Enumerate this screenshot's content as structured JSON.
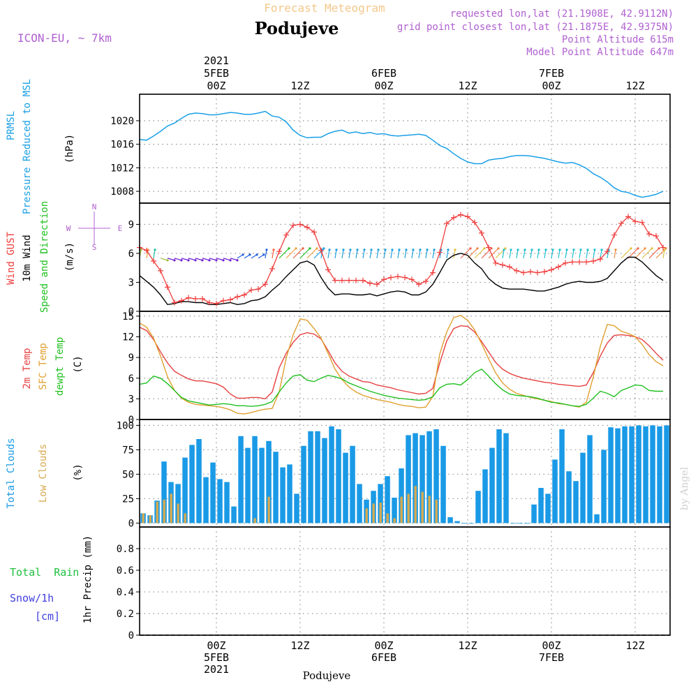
{
  "header": {
    "title": "Forecast Meteogram",
    "location": "Podujeve",
    "model": "ICON-EU, ~ 7km",
    "requested": "requested lon,lat (21.1908E, 42.9112N)",
    "gridpoint": "grid point closest lon,lat (21.1875E, 42.9375N)",
    "point_alt": "Point Altitude 615m",
    "model_alt": "Model Point Altitude 647m",
    "footer": "Podujeve",
    "watermark": "by Angel"
  },
  "colors": {
    "pressure": "#1aa0e6",
    "gust": "#f03c3c",
    "wind": "#000000",
    "temp2m": "#e64040",
    "sfc": "#e0a030",
    "dew": "#20c020",
    "cloud_total": "#1a9ae6",
    "cloud_low": "#d6aa50",
    "model_purple": "#b060d0",
    "rain_label": "#20c040",
    "snow_label": "#4040e0"
  },
  "time_axis": {
    "top_labels": [
      {
        "t": 0,
        "lines": [
          "2021",
          "5FEB",
          "00Z"
        ]
      },
      {
        "t": 12,
        "lines": [
          "12Z"
        ]
      },
      {
        "t": 24,
        "lines": [
          "6FEB",
          "00Z"
        ]
      },
      {
        "t": 36,
        "lines": [
          "12Z"
        ]
      },
      {
        "t": 48,
        "lines": [
          "7FEB",
          "00Z"
        ]
      },
      {
        "t": 60,
        "lines": [
          "12Z"
        ]
      }
    ],
    "bottom_labels": [
      {
        "t": 0,
        "lines": [
          "00Z",
          "5FEB",
          "2021"
        ]
      },
      {
        "t": 12,
        "lines": [
          "12Z"
        ]
      },
      {
        "t": 24,
        "lines": [
          "00Z",
          "6FEB"
        ]
      },
      {
        "t": 36,
        "lines": [
          "12Z"
        ]
      },
      {
        "t": 48,
        "lines": [
          "00Z",
          "7FEB"
        ]
      },
      {
        "t": 60,
        "lines": [
          "12Z"
        ]
      }
    ]
  },
  "panels": {
    "pressure": {
      "label_lines": [
        "PRMSL",
        "Pressure Reduced to MSL"
      ],
      "unit": "(hPa)"
    },
    "wind": {
      "label_lines": [
        "Wind GUST",
        "10m Wind",
        "Speed and Direction"
      ],
      "unit": "(m/s)",
      "compass": {
        "n": "N",
        "s": "S",
        "e": "E",
        "w": "W"
      }
    },
    "temp": {
      "label_lines": [
        "2m Temp",
        "SFC Temp",
        "dewpt Temp"
      ],
      "unit": "(C)"
    },
    "cloud": {
      "label_lines": [
        "Total Clouds",
        "Low Clouds"
      ],
      "unit": "(%)"
    },
    "precip": {
      "label_lines": [
        "Total  Rain",
        "Snow/1h",
        "[cm]"
      ],
      "unit": "1hr Precip (mm)"
    }
  },
  "chart_data": [
    {
      "type": "line",
      "name": "pressure",
      "xlim": [
        -11,
        65
      ],
      "ylim": [
        1006,
        1024.5
      ],
      "yticks": [
        1008,
        1012,
        1016,
        1020
      ],
      "grid": true,
      "x": [
        -11,
        -10,
        -9,
        -8,
        -7,
        -6,
        -5,
        -4,
        -3,
        -2,
        -1,
        0,
        1,
        2,
        3,
        4,
        5,
        6,
        7,
        8,
        9,
        10,
        11,
        12,
        13,
        14,
        15,
        16,
        17,
        18,
        19,
        20,
        21,
        22,
        23,
        24,
        25,
        26,
        27,
        28,
        29,
        30,
        31,
        32,
        33,
        34,
        35,
        36,
        37,
        38,
        39,
        40,
        41,
        42,
        43,
        44,
        45,
        46,
        47,
        48,
        49,
        50,
        51,
        52,
        53,
        54,
        55,
        56,
        57,
        58,
        59,
        60,
        61,
        62,
        63,
        64
      ],
      "values": [
        1016.8,
        1016.7,
        1017.4,
        1018.2,
        1019.1,
        1019.6,
        1020.4,
        1021.1,
        1021.3,
        1021.2,
        1021.0,
        1021.0,
        1021.2,
        1021.4,
        1021.3,
        1021.1,
        1021.1,
        1021.3,
        1021.6,
        1020.8,
        1020.6,
        1019.8,
        1018.4,
        1017.5,
        1017.1,
        1017.2,
        1017.2,
        1017.8,
        1018.2,
        1018.4,
        1017.9,
        1018.1,
        1017.8,
        1018.0,
        1017.7,
        1017.8,
        1017.5,
        1017.4,
        1017.5,
        1017.6,
        1017.7,
        1017.5,
        1016.7,
        1015.8,
        1015.3,
        1014.4,
        1013.6,
        1013.0,
        1012.7,
        1012.7,
        1013.3,
        1013.5,
        1013.6,
        1013.9,
        1014.1,
        1014.1,
        1014.0,
        1013.8,
        1013.6,
        1013.3,
        1013.0,
        1012.8,
        1012.9,
        1012.5,
        1011.9,
        1011.0,
        1010.4,
        1009.6,
        1008.6,
        1008.0,
        1007.8,
        1007.3,
        1007.0,
        1007.2,
        1007.5,
        1008.0
      ]
    },
    {
      "type": "line",
      "name": "wind",
      "xlim": [
        -11,
        65
      ],
      "ylim": [
        0,
        11.2
      ],
      "yticks": [
        0,
        3,
        6,
        9
      ],
      "grid": true,
      "x": [
        -11,
        -10,
        -9,
        -8,
        -7,
        -6,
        -5,
        -4,
        -3,
        -2,
        -1,
        0,
        1,
        2,
        3,
        4,
        5,
        6,
        7,
        8,
        9,
        10,
        11,
        12,
        13,
        14,
        15,
        16,
        17,
        18,
        19,
        20,
        21,
        22,
        23,
        24,
        25,
        26,
        27,
        28,
        29,
        30,
        31,
        32,
        33,
        34,
        35,
        36,
        37,
        38,
        39,
        40,
        41,
        42,
        43,
        44,
        45,
        46,
        47,
        48,
        49,
        50,
        51,
        52,
        53,
        54,
        55,
        56,
        57,
        58,
        59,
        60,
        61,
        62,
        63,
        64
      ],
      "series": [
        {
          "name": "Wind GUST",
          "marker": "+",
          "values": [
            6.6,
            6.3,
            5.2,
            4.2,
            2.5,
            0.9,
            1.1,
            1.4,
            1.3,
            1.3,
            0.9,
            0.8,
            1.1,
            1.2,
            1.5,
            1.7,
            2.2,
            2.3,
            2.8,
            4.4,
            6.2,
            7.9,
            8.9,
            9.0,
            8.7,
            8.2,
            6.3,
            4.3,
            3.2,
            3.2,
            3.2,
            3.2,
            3.2,
            2.9,
            2.8,
            3.3,
            3.5,
            3.6,
            3.5,
            3.3,
            2.8,
            3.1,
            4.0,
            6.1,
            9.1,
            9.7,
            10.0,
            9.8,
            9.2,
            8.1,
            6.6,
            5.0,
            4.8,
            4.6,
            4.2,
            4.0,
            4.1,
            4.0,
            4.1,
            4.3,
            4.6,
            5.0,
            5.1,
            5.1,
            5.1,
            5.2,
            5.4,
            6.2,
            7.9,
            9.1,
            9.8,
            9.3,
            9.2,
            8.0,
            7.8,
            6.6
          ]
        },
        {
          "name": "10m Wind",
          "values": [
            3.7,
            3.1,
            2.5,
            1.7,
            0.7,
            0.8,
            1.0,
            1.0,
            0.9,
            0.9,
            0.7,
            0.7,
            0.8,
            0.9,
            0.7,
            0.8,
            1.1,
            1.2,
            1.5,
            2.2,
            2.8,
            3.6,
            4.3,
            5.0,
            5.2,
            4.8,
            3.5,
            2.4,
            1.7,
            1.8,
            1.8,
            1.7,
            1.7,
            1.8,
            1.6,
            1.8,
            2.0,
            2.1,
            2.0,
            1.7,
            1.7,
            2.0,
            2.8,
            4.0,
            5.3,
            5.8,
            6.0,
            5.8,
            5.0,
            4.4,
            3.4,
            2.8,
            2.4,
            2.3,
            2.3,
            2.3,
            2.2,
            2.1,
            2.1,
            2.3,
            2.5,
            2.8,
            3.0,
            3.1,
            3.0,
            3.0,
            3.1,
            3.4,
            4.2,
            5.0,
            5.6,
            5.6,
            5.1,
            4.4,
            3.7,
            3.2
          ]
        }
      ]
    },
    {
      "type": "line",
      "name": "temperature",
      "xlim": [
        -11,
        65
      ],
      "ylim": [
        0,
        15.7
      ],
      "yticks": [
        0,
        3,
        6,
        9,
        12,
        15
      ],
      "grid": true,
      "x": [
        -11,
        -10,
        -9,
        -8,
        -7,
        -6,
        -5,
        -4,
        -3,
        -2,
        -1,
        0,
        1,
        2,
        3,
        4,
        5,
        6,
        7,
        8,
        9,
        10,
        11,
        12,
        13,
        14,
        15,
        16,
        17,
        18,
        19,
        20,
        21,
        22,
        23,
        24,
        25,
        26,
        27,
        28,
        29,
        30,
        31,
        32,
        33,
        34,
        35,
        36,
        37,
        38,
        39,
        40,
        41,
        42,
        43,
        44,
        45,
        46,
        47,
        48,
        49,
        50,
        51,
        52,
        53,
        54,
        55,
        56,
        57,
        58,
        59,
        60,
        61,
        62,
        63,
        64
      ],
      "series": [
        {
          "name": "2m Temp",
          "values": [
            13.4,
            12.9,
            11.6,
            9.8,
            8.2,
            7.0,
            6.4,
            5.9,
            5.6,
            5.6,
            5.4,
            5.2,
            4.7,
            3.7,
            3.1,
            3.1,
            3.2,
            3.2,
            3.0,
            4.0,
            7.5,
            9.6,
            11.2,
            12.3,
            12.6,
            12.4,
            11.7,
            10.0,
            8.2,
            7.0,
            6.3,
            5.9,
            5.5,
            5.4,
            5.0,
            4.8,
            4.6,
            4.3,
            4.1,
            3.9,
            3.7,
            3.8,
            4.5,
            8.2,
            11.4,
            13.2,
            13.6,
            13.5,
            12.7,
            11.3,
            9.8,
            8.3,
            7.3,
            6.7,
            6.3,
            6.0,
            5.8,
            5.6,
            5.4,
            5.3,
            5.1,
            5.0,
            4.9,
            4.8,
            5.0,
            6.8,
            9.2,
            11.1,
            12.2,
            12.3,
            12.2,
            12.0,
            11.6,
            10.7,
            9.6,
            8.6
          ]
        },
        {
          "name": "SFC Temp",
          "values": [
            14.0,
            13.4,
            11.8,
            9.2,
            6.2,
            4.2,
            3.1,
            2.5,
            2.2,
            2.1,
            2.0,
            1.9,
            1.7,
            1.4,
            0.9,
            0.8,
            1.0,
            1.3,
            1.5,
            1.6,
            4.0,
            8.9,
            12.3,
            14.6,
            14.4,
            13.2,
            11.8,
            9.6,
            7.3,
            5.8,
            4.7,
            4.0,
            3.5,
            3.2,
            2.9,
            2.7,
            2.5,
            2.2,
            2.0,
            1.9,
            1.7,
            1.8,
            3.3,
            9.5,
            12.7,
            14.8,
            15.1,
            14.4,
            13.0,
            11.0,
            8.8,
            6.8,
            5.3,
            4.4,
            3.8,
            3.5,
            3.2,
            3.0,
            2.8,
            2.6,
            2.3,
            2.2,
            2.0,
            1.8,
            2.5,
            6.2,
            10.6,
            13.8,
            13.6,
            12.8,
            12.5,
            12.0,
            10.9,
            9.4,
            8.4,
            7.8
          ]
        },
        {
          "name": "dewpt Temp",
          "values": [
            5.1,
            5.3,
            6.3,
            6.0,
            5.2,
            4.2,
            3.2,
            2.7,
            2.5,
            2.3,
            2.1,
            2.2,
            2.3,
            2.2,
            2.0,
            2.0,
            1.9,
            2.0,
            2.2,
            2.6,
            4.0,
            5.3,
            6.3,
            6.5,
            5.7,
            5.5,
            6.0,
            6.4,
            6.2,
            5.9,
            5.3,
            4.9,
            4.5,
            4.1,
            3.8,
            3.5,
            3.3,
            3.1,
            3.0,
            2.9,
            2.8,
            2.9,
            3.3,
            4.6,
            5.1,
            5.2,
            5.0,
            5.8,
            6.8,
            7.3,
            6.3,
            5.2,
            4.3,
            3.7,
            3.5,
            3.4,
            3.3,
            3.1,
            2.8,
            2.5,
            2.4,
            2.2,
            2.0,
            1.9,
            2.2,
            3.1,
            4.1,
            3.8,
            3.3,
            4.2,
            4.6,
            5.0,
            4.9,
            4.2,
            4.1,
            4.1
          ]
        }
      ]
    },
    {
      "type": "bar",
      "name": "clouds",
      "xlim": [
        -11,
        65
      ],
      "ylim": [
        -4,
        106
      ],
      "yticks": [
        0,
        25,
        50,
        75,
        100
      ],
      "grid": true,
      "x": [
        -11,
        -10,
        -9,
        -8,
        -7,
        -6,
        -5,
        -4,
        -3,
        -2,
        -1,
        0,
        1,
        2,
        3,
        4,
        5,
        6,
        7,
        8,
        9,
        10,
        11,
        12,
        13,
        14,
        15,
        16,
        17,
        18,
        19,
        20,
        21,
        22,
        23,
        24,
        25,
        26,
        27,
        28,
        29,
        30,
        31,
        32,
        33,
        34,
        35,
        36,
        37,
        38,
        39,
        40,
        41,
        42,
        43,
        44,
        45,
        46,
        47,
        48,
        49,
        50,
        51,
        52,
        53,
        54,
        55,
        56,
        57,
        58,
        59,
        60,
        61,
        62,
        63,
        64
      ],
      "series": [
        {
          "name": "Total Clouds",
          "values": [
            10,
            8,
            23,
            63,
            42,
            40,
            67,
            80,
            86,
            47,
            62,
            45,
            42,
            17,
            89,
            77,
            89,
            77,
            84,
            73,
            57,
            60,
            30,
            79,
            94,
            94,
            87,
            99,
            96,
            72,
            79,
            40,
            24,
            33,
            40,
            48,
            26,
            56,
            90,
            92,
            90,
            94,
            96,
            79,
            6,
            2,
            0,
            0,
            33,
            55,
            77,
            96,
            92,
            0,
            0,
            0,
            19,
            36,
            30,
            65,
            96,
            53,
            43,
            72,
            90,
            9,
            75,
            98,
            97,
            99,
            99,
            100,
            99,
            100,
            99,
            100
          ]
        },
        {
          "name": "Low Clouds",
          "values": [
            10,
            8,
            22,
            24,
            30,
            20,
            10,
            0,
            0,
            0,
            0,
            0,
            0,
            0,
            0,
            0,
            5,
            0,
            27,
            0,
            0,
            0,
            0,
            0,
            0,
            0,
            0,
            0,
            0,
            0,
            0,
            0,
            15,
            20,
            21,
            10,
            5,
            27,
            30,
            38,
            32,
            28,
            24,
            0,
            0,
            0,
            0,
            0,
            0,
            0,
            0,
            0,
            0,
            0,
            0,
            0,
            0,
            0,
            0,
            0,
            0,
            0,
            0,
            0,
            0,
            0,
            0,
            0,
            0,
            0,
            0,
            0,
            0,
            0,
            0,
            0
          ]
        }
      ]
    },
    {
      "type": "bar",
      "name": "precipitation",
      "xlim": [
        -11,
        65
      ],
      "ylim": [
        0,
        1.0
      ],
      "yticks": [
        0,
        0.2,
        0.4,
        0.6,
        0.8
      ],
      "grid": true,
      "series": [
        {
          "name": "Total Rain",
          "values": []
        },
        {
          "name": "Snow/1h",
          "values": []
        }
      ]
    }
  ]
}
